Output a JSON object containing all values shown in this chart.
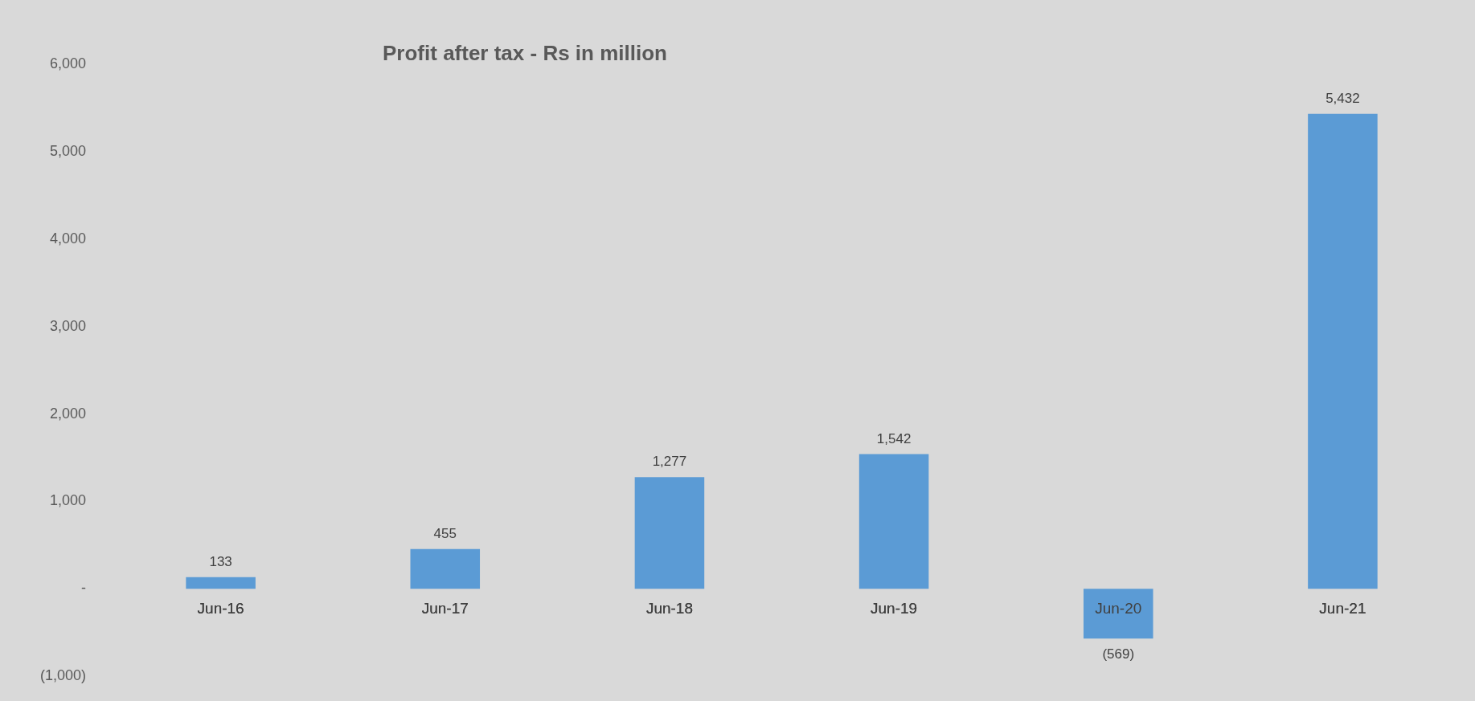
{
  "chart_data": {
    "type": "bar",
    "title": "Profit after tax - Rs in million",
    "categories": [
      "Jun-16",
      "Jun-17",
      "Jun-18",
      "Jun-19",
      "Jun-20",
      "Jun-21"
    ],
    "values": [
      133,
      455,
      1277,
      1542,
      -569,
      5432
    ],
    "value_labels": [
      "133",
      "455",
      "1,277",
      "1,542",
      "(569)",
      "5,432"
    ],
    "color": "#5b9bd5",
    "ylim": [
      -1000,
      6000
    ],
    "yticks": [
      {
        "value": -1000,
        "label": "(1,000)"
      },
      {
        "value": 0,
        "label": "-"
      },
      {
        "value": 1000,
        "label": "1,000"
      },
      {
        "value": 2000,
        "label": "2,000"
      },
      {
        "value": 3000,
        "label": "3,000"
      },
      {
        "value": 4000,
        "label": "4,000"
      },
      {
        "value": 5000,
        "label": "5,000"
      },
      {
        "value": 6000,
        "label": "6,000"
      }
    ],
    "grid": false,
    "legend": false
  }
}
